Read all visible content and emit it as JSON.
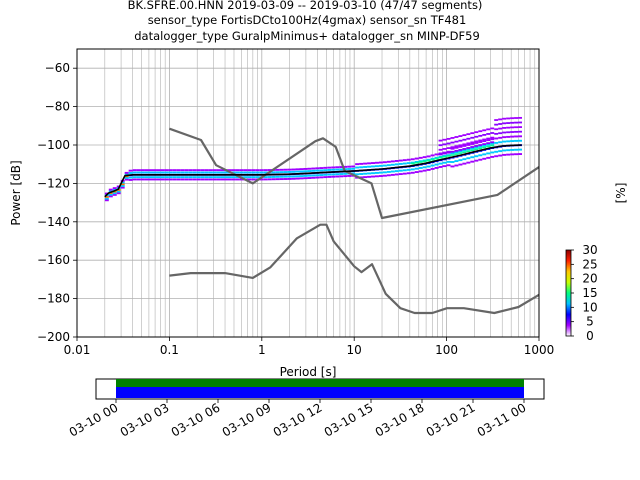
{
  "title_lines": [
    "BK.SFRE.00.HNN   2019-03-09 -- 2019-03-10  (47/47 segments)",
    "sensor_type FortisDCto100Hz(4gmax) sensor_sn TF481",
    "datalogger_type GuralpMinimus+ datalogger_sn MINP-DF59"
  ],
  "chart_data": [
    {
      "type": "heatmap",
      "xlabel": "Period [s]",
      "ylabel": "Power [dB]",
      "xscale": "log",
      "xlim": [
        0.01,
        1000
      ],
      "ylim": [
        -200,
        -50
      ],
      "xtick_values": [
        0.01,
        0.1,
        1,
        10,
        100,
        1000
      ],
      "xtick_labels": [
        "0.01",
        "0.1",
        "1",
        "10",
        "100",
        "1000"
      ],
      "ytick_values": [
        -200,
        -180,
        -160,
        -140,
        -120,
        -100,
        -80,
        -60
      ],
      "ytick_labels": [
        "−200",
        "−180",
        "−160",
        "−140",
        "−120",
        "−100",
        "−80",
        "−60"
      ],
      "grid": true,
      "colorbar": {
        "label": "[%]",
        "range": [
          0,
          30
        ],
        "tick_values": [
          0,
          5,
          10,
          15,
          20,
          25,
          30
        ],
        "tick_labels": [
          "0",
          "5",
          "10",
          "15",
          "20",
          "25",
          "30"
        ],
        "colors": [
          "#ffffff",
          "#a300ff",
          "#0000ff",
          "#00c0ff",
          "#00ff80",
          "#c8ff00",
          "#ffc800",
          "#ff2000",
          "#900000"
        ]
      },
      "series": [
        {
          "role": "upper noise model",
          "color": "#666666",
          "x": [
            0.1,
            0.22,
            0.32,
            0.8,
            3.8,
            4.6,
            6.3,
            7.9,
            15.4,
            20,
            354.8,
            1000
          ],
          "y": [
            -91.5,
            -97.4,
            -110.5,
            -120.0,
            -98.0,
            -96.5,
            -101.0,
            -113.5,
            -120.0,
            -138.0,
            -126.0,
            -111.5
          ]
        },
        {
          "role": "lower noise model",
          "color": "#666666",
          "x": [
            0.1,
            0.17,
            0.4,
            0.8,
            1.24,
            2.4,
            4.3,
            5.0,
            6.0,
            10.0,
            12.0,
            15.6,
            21.9,
            31.6,
            45.0,
            70.0,
            101.0,
            154.0,
            328.0,
            600.0,
            1000
          ],
          "y": [
            -168.0,
            -166.7,
            -166.7,
            -169.2,
            -163.7,
            -148.6,
            -141.5,
            -141.5,
            -150.2,
            -163.2,
            -166.2,
            -162.1,
            -177.5,
            -185.0,
            -187.5,
            -187.5,
            -185.0,
            -185.0,
            -187.5,
            -184.4,
            -178.0
          ]
        },
        {
          "role": "mode",
          "color": "#000000",
          "x": [
            0.02,
            0.022,
            0.025,
            0.028,
            0.03,
            0.033,
            0.04,
            0.06,
            0.1,
            0.3,
            1,
            2,
            3,
            5,
            10,
            20,
            40,
            60,
            80,
            100,
            150,
            200,
            300,
            400,
            500,
            650
          ],
          "y": [
            -127,
            -125,
            -124,
            -123,
            -120,
            -116,
            -115.5,
            -115.5,
            -115.5,
            -115.5,
            -115.5,
            -115.2,
            -114.8,
            -114.2,
            -113.5,
            -112.5,
            -111.0,
            -109.5,
            -108.0,
            -107.0,
            -105.0,
            -103.5,
            -101.5,
            -100.5,
            -100.2,
            -100.0
          ]
        }
      ]
    },
    {
      "type": "heatmap",
      "role": "data coverage",
      "xtick_labels": [
        "03-10 00",
        "03-10 03",
        "03-10 06",
        "03-10 09",
        "03-10 12",
        "03-10 15",
        "03-10 18",
        "03-10 21",
        "03-11 00"
      ],
      "series": [
        {
          "role": "coverage (upper row)",
          "color": "#008000",
          "x": [
            "03-10 00",
            "03-11 00"
          ]
        },
        {
          "role": "coverage (lower row)",
          "color": "#0000ff",
          "x": [
            "03-10 00",
            "03-11 00"
          ]
        }
      ]
    }
  ]
}
